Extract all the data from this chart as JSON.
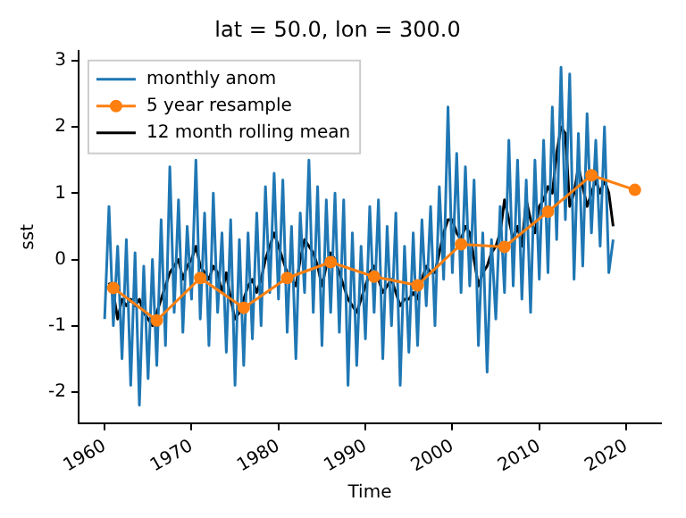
{
  "chart_data": {
    "type": "line",
    "title": "lat = 50.0, lon = 300.0",
    "xlabel": "Time",
    "ylabel": "sst",
    "xlim": [
      "1957",
      "2024"
    ],
    "xticks": [
      "1960",
      "1970",
      "1980",
      "1990",
      "2000",
      "2010",
      "2020"
    ],
    "ylim": [
      -2.47,
      3.15
    ],
    "yticks": [
      -2,
      -1,
      0,
      1,
      2,
      3
    ],
    "grid": false,
    "legend": "top left",
    "series": [
      {
        "name": "monthly anom",
        "color": "#1f77b4",
        "marker": "none",
        "x": [
          "1960-01",
          "1960-07",
          "1961-01",
          "1961-07",
          "1962-01",
          "1962-07",
          "1963-01",
          "1963-07",
          "1964-01",
          "1964-07",
          "1965-01",
          "1965-07",
          "1966-01",
          "1966-07",
          "1967-01",
          "1967-07",
          "1968-01",
          "1968-07",
          "1969-01",
          "1969-07",
          "1970-01",
          "1970-07",
          "1971-01",
          "1971-07",
          "1972-01",
          "1972-07",
          "1973-01",
          "1973-07",
          "1974-01",
          "1974-07",
          "1975-01",
          "1975-07",
          "1976-01",
          "1976-07",
          "1977-01",
          "1977-07",
          "1978-01",
          "1978-07",
          "1979-01",
          "1979-07",
          "1980-01",
          "1980-07",
          "1981-01",
          "1981-07",
          "1982-01",
          "1982-07",
          "1983-01",
          "1983-07",
          "1984-01",
          "1984-07",
          "1985-01",
          "1985-07",
          "1986-01",
          "1986-07",
          "1987-01",
          "1987-07",
          "1988-01",
          "1988-07",
          "1989-01",
          "1989-07",
          "1990-01",
          "1990-07",
          "1991-01",
          "1991-07",
          "1992-01",
          "1992-07",
          "1993-01",
          "1993-07",
          "1994-01",
          "1994-07",
          "1995-01",
          "1995-07",
          "1996-01",
          "1996-07",
          "1997-01",
          "1997-07",
          "1998-01",
          "1998-07",
          "1999-01",
          "1999-07",
          "2000-01",
          "2000-07",
          "2001-01",
          "2001-07",
          "2002-01",
          "2002-07",
          "2003-01",
          "2003-07",
          "2004-01",
          "2004-07",
          "2005-01",
          "2005-07",
          "2006-01",
          "2006-07",
          "2007-01",
          "2007-07",
          "2008-01",
          "2008-07",
          "2009-01",
          "2009-07",
          "2010-01",
          "2010-07",
          "2011-01",
          "2011-07",
          "2012-01",
          "2012-07",
          "2013-01",
          "2013-07",
          "2014-01",
          "2014-07",
          "2015-01",
          "2015-07",
          "2016-01",
          "2016-07",
          "2017-01",
          "2017-07",
          "2018-01",
          "2018-07"
        ],
        "values": [
          -0.9,
          0.8,
          -1.0,
          0.2,
          -1.5,
          0.3,
          -1.9,
          0.1,
          -2.2,
          -0.1,
          -1.8,
          0.0,
          -1.6,
          0.6,
          -1.3,
          1.4,
          -0.8,
          0.9,
          -1.1,
          0.5,
          -0.6,
          1.5,
          -0.9,
          0.7,
          -1.3,
          1.0,
          -0.8,
          0.4,
          -1.4,
          0.6,
          -1.9,
          0.3,
          -1.6,
          0.4,
          -1.2,
          0.7,
          -1.0,
          1.1,
          -0.5,
          1.3,
          -0.6,
          1.2,
          -1.1,
          0.5,
          -1.5,
          0.7,
          -0.5,
          1.5,
          -0.8,
          1.1,
          -1.3,
          0.9,
          -0.8,
          1.0,
          -1.1,
          0.9,
          -1.9,
          0.4,
          -1.6,
          0.2,
          -1.2,
          0.8,
          -0.8,
          0.9,
          -1.5,
          0.5,
          -1.0,
          0.7,
          -1.9,
          0.2,
          -1.4,
          0.4,
          -1.3,
          0.6,
          -0.7,
          0.8,
          -1.0,
          1.1,
          -0.3,
          2.3,
          -0.2,
          1.6,
          -0.5,
          1.4,
          -0.4,
          1.2,
          -1.3,
          0.4,
          -1.7,
          0.3,
          -0.9,
          0.8,
          -0.5,
          1.8,
          -0.4,
          1.5,
          -0.6,
          1.2,
          -0.8,
          1.5,
          -0.3,
          1.8,
          -0.2,
          2.3,
          0.3,
          2.9,
          0.6,
          2.8,
          -0.3,
          1.9,
          -0.1,
          2.2,
          0.4,
          1.8,
          0.2,
          2.0,
          -0.2,
          0.3
        ]
      },
      {
        "name": "5 year resample",
        "color": "#ff7f0e",
        "marker": "circle",
        "x": [
          "1960-12-31",
          "1965-12-31",
          "1970-12-31",
          "1975-12-31",
          "1980-12-31",
          "1985-12-31",
          "1990-12-31",
          "1995-12-31",
          "2000-12-31",
          "2005-12-31",
          "2010-12-31",
          "2015-12-31",
          "2020-12-31"
        ],
        "values": [
          -0.43,
          -0.92,
          -0.28,
          -0.73,
          -0.28,
          -0.04,
          -0.26,
          -0.39,
          0.23,
          0.19,
          0.72,
          1.27,
          1.05
        ]
      },
      {
        "name": "12 month rolling mean",
        "color": "#000000",
        "marker": "none",
        "x": [
          "1960-07",
          "1961-01",
          "1961-07",
          "1962-01",
          "1962-07",
          "1963-01",
          "1963-07",
          "1964-01",
          "1964-07",
          "1965-01",
          "1965-07",
          "1966-01",
          "1966-07",
          "1967-01",
          "1967-07",
          "1968-01",
          "1968-07",
          "1969-01",
          "1969-07",
          "1970-01",
          "1970-07",
          "1971-01",
          "1971-07",
          "1972-01",
          "1972-07",
          "1973-01",
          "1973-07",
          "1974-01",
          "1974-07",
          "1975-01",
          "1975-07",
          "1976-01",
          "1976-07",
          "1977-01",
          "1977-07",
          "1978-01",
          "1978-07",
          "1979-01",
          "1979-07",
          "1980-01",
          "1980-07",
          "1981-01",
          "1981-07",
          "1982-01",
          "1982-07",
          "1983-01",
          "1983-07",
          "1984-01",
          "1984-07",
          "1985-01",
          "1985-07",
          "1986-01",
          "1986-07",
          "1987-01",
          "1987-07",
          "1988-01",
          "1988-07",
          "1989-01",
          "1989-07",
          "1990-01",
          "1990-07",
          "1991-01",
          "1991-07",
          "1992-01",
          "1992-07",
          "1993-01",
          "1993-07",
          "1994-01",
          "1994-07",
          "1995-01",
          "1995-07",
          "1996-01",
          "1996-07",
          "1997-01",
          "1997-07",
          "1998-01",
          "1998-07",
          "1999-01",
          "1999-07",
          "2000-01",
          "2000-07",
          "2001-01",
          "2001-07",
          "2002-01",
          "2002-07",
          "2003-01",
          "2003-07",
          "2004-01",
          "2004-07",
          "2005-01",
          "2005-07",
          "2006-01",
          "2006-07",
          "2007-01",
          "2007-07",
          "2008-01",
          "2008-07",
          "2009-01",
          "2009-07",
          "2010-01",
          "2010-07",
          "2011-01",
          "2011-07",
          "2012-01",
          "2012-07",
          "2013-01",
          "2013-07",
          "2014-01",
          "2014-07",
          "2015-01",
          "2015-07",
          "2016-01",
          "2016-07",
          "2017-01",
          "2017-07",
          "2018-01",
          "2018-07"
        ],
        "values": [
          -0.35,
          -0.5,
          -0.9,
          -0.6,
          -0.7,
          -0.6,
          -0.7,
          -0.6,
          -0.8,
          -0.9,
          -1.0,
          -0.8,
          -0.6,
          -0.4,
          -0.2,
          -0.1,
          0.0,
          -0.3,
          -0.1,
          0.0,
          0.2,
          -0.1,
          -0.2,
          -0.3,
          -0.1,
          -0.2,
          -0.5,
          -0.2,
          -0.6,
          -0.9,
          -0.8,
          -0.6,
          -0.4,
          -0.3,
          -0.5,
          -0.3,
          0.0,
          0.2,
          0.4,
          0.2,
          0.0,
          -0.2,
          -0.3,
          -0.4,
          0.0,
          0.3,
          0.2,
          0.1,
          -0.1,
          -0.4,
          -0.1,
          0.1,
          0.0,
          -0.2,
          -0.4,
          -0.6,
          -0.7,
          -0.8,
          -0.6,
          -0.4,
          -0.2,
          -0.1,
          -0.3,
          -0.5,
          -0.4,
          -0.3,
          -0.5,
          -0.7,
          -0.6,
          -0.6,
          -0.5,
          -0.6,
          -0.3,
          -0.1,
          -0.2,
          -0.2,
          0.1,
          0.4,
          0.6,
          0.6,
          0.4,
          0.3,
          0.5,
          0.4,
          0.0,
          -0.4,
          -0.2,
          -0.1,
          0.1,
          0.2,
          0.4,
          0.9,
          0.6,
          0.3,
          0.5,
          0.2,
          0.9,
          0.6,
          0.4,
          0.8,
          0.9,
          1.1,
          1.0,
          1.6,
          2.0,
          1.9,
          0.8,
          1.0,
          1.4,
          1.1,
          0.8,
          1.0,
          1.2,
          1.0,
          1.2,
          1.0,
          0.5
        ]
      }
    ]
  }
}
